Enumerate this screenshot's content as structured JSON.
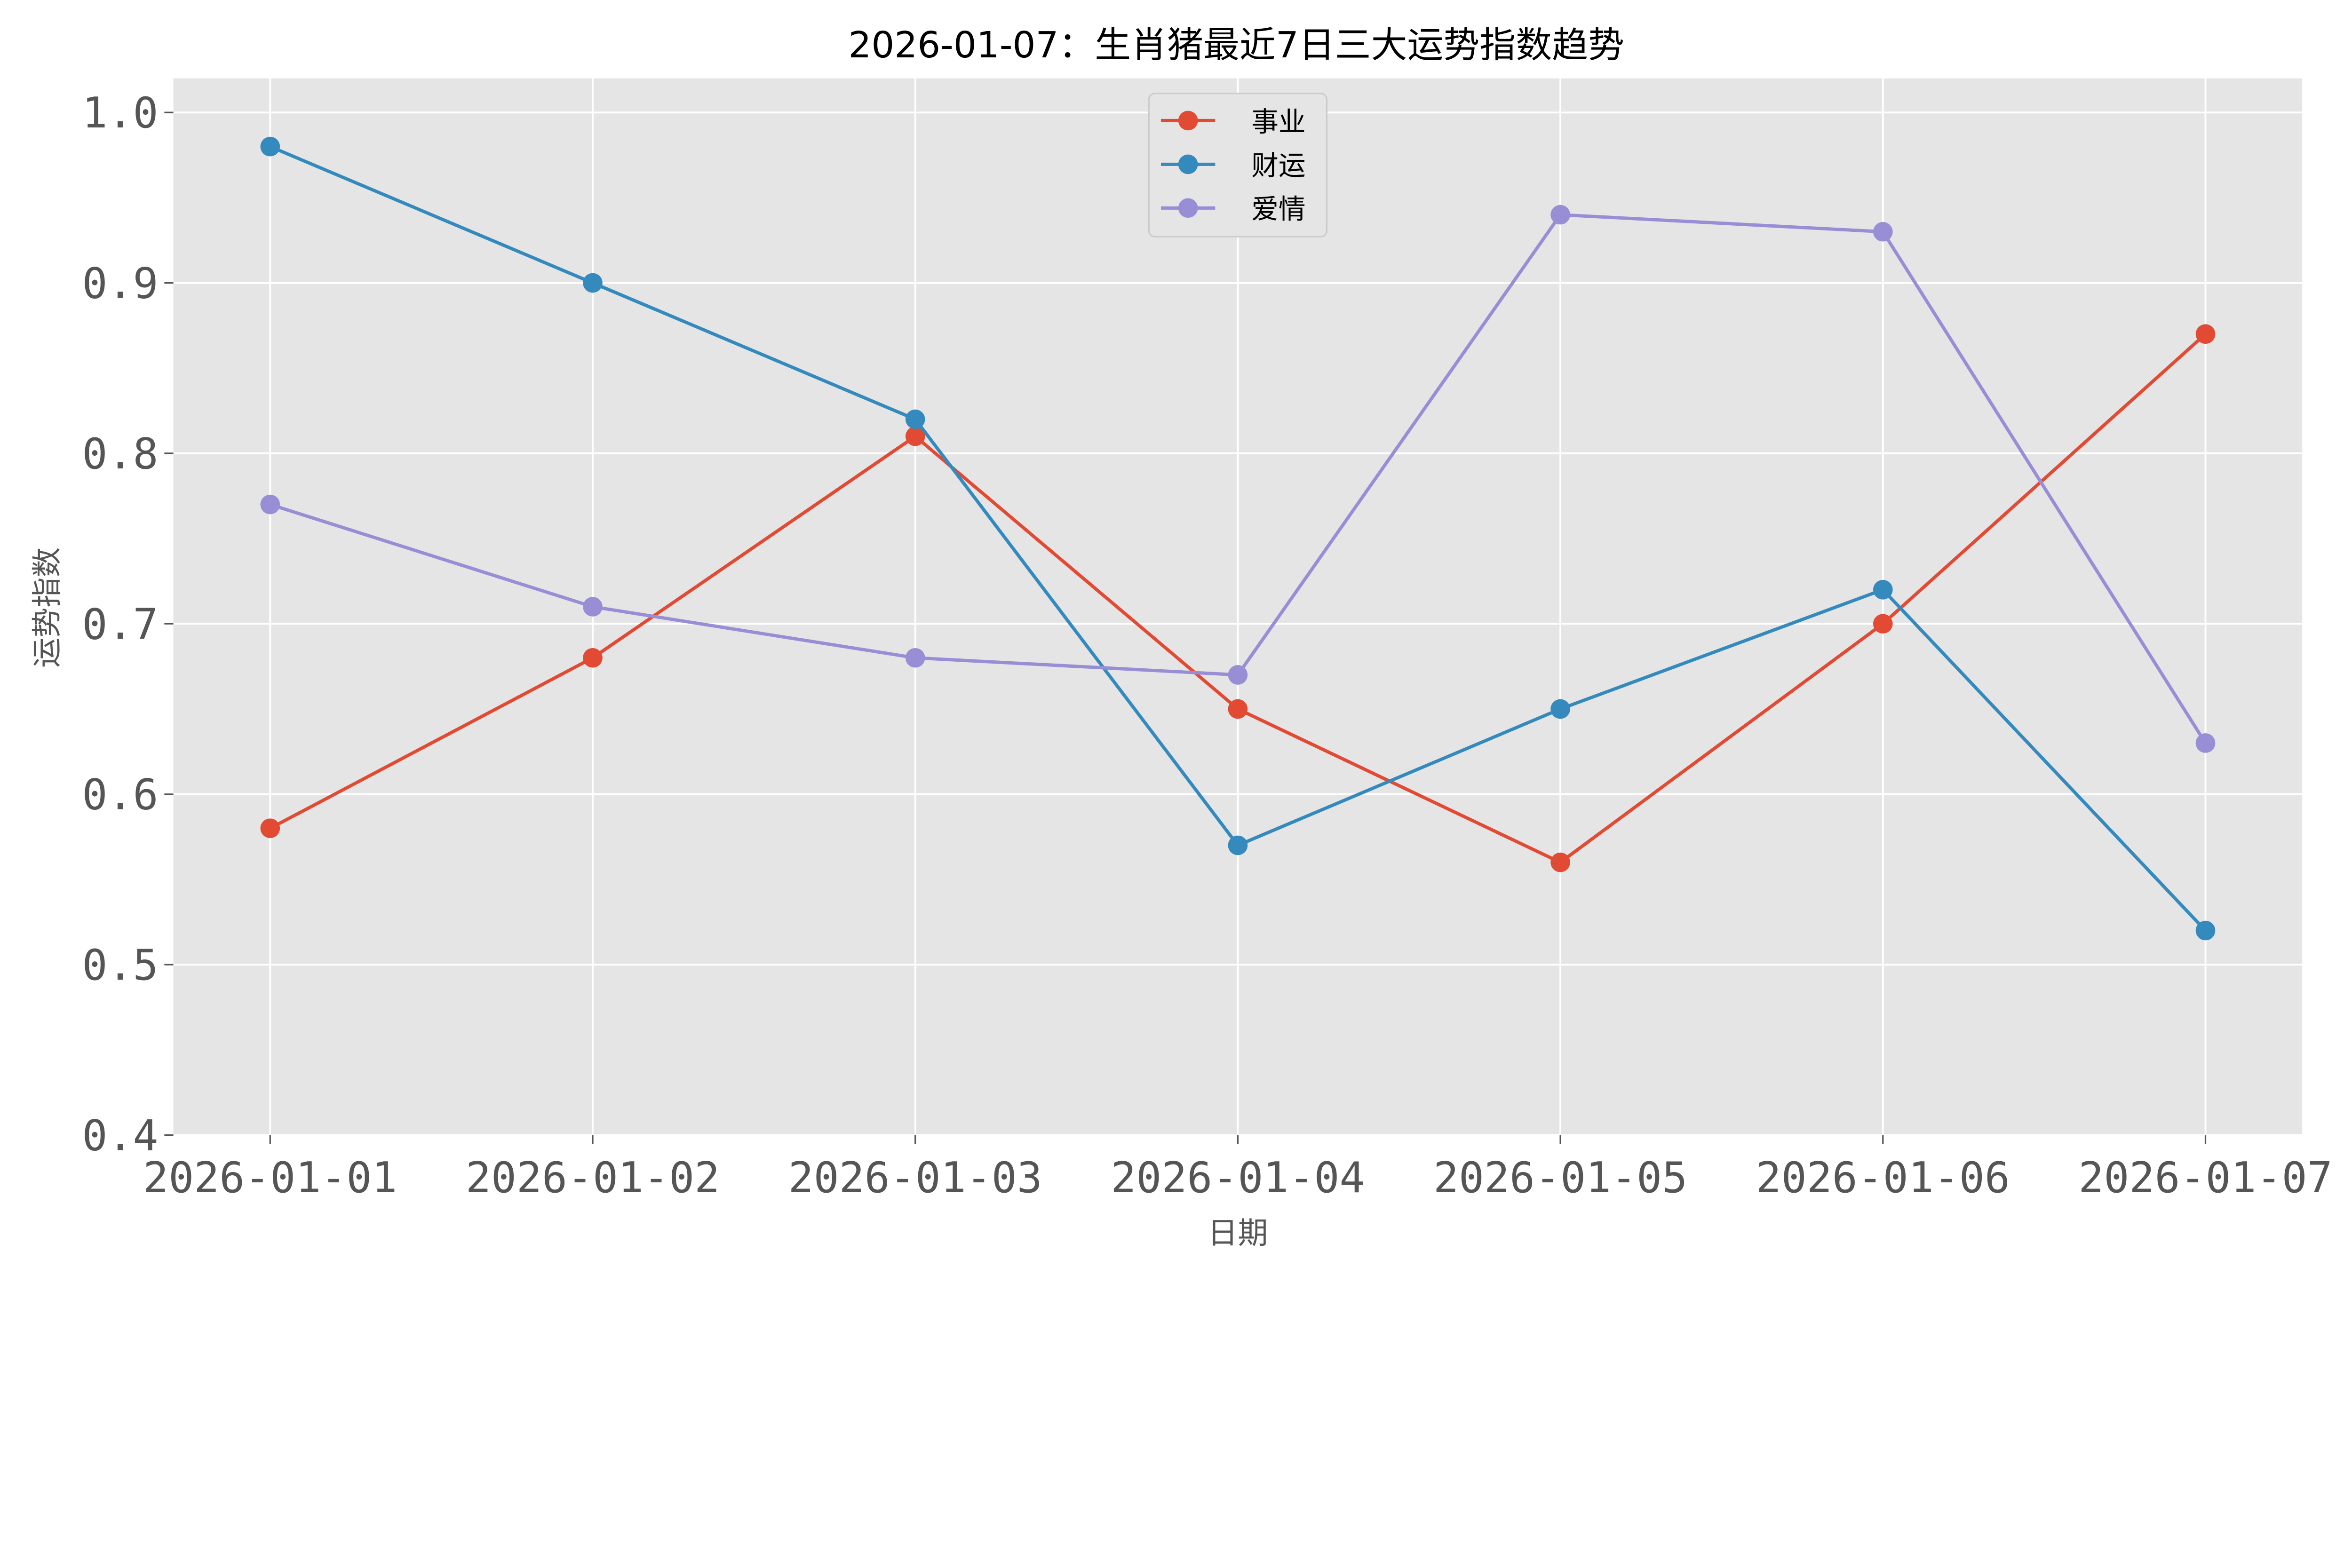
{
  "chart_data": {
    "type": "line",
    "title": "2026-01-07：生肖猪最近7日三大运势指数趋势",
    "xlabel": "日期",
    "ylabel": "运势指数",
    "categories": [
      "2026-01-01",
      "2026-01-02",
      "2026-01-03",
      "2026-01-04",
      "2026-01-05",
      "2026-01-06",
      "2026-01-07"
    ],
    "ylim": [
      0.4,
      1.02
    ],
    "yticks": [
      "0.4",
      "0.5",
      "0.6",
      "0.7",
      "0.8",
      "0.9",
      "1.0"
    ],
    "grid": true,
    "legend_position": "upper-center",
    "marker": "circle",
    "background": "#e5e5e5",
    "series": [
      {
        "name": "事业",
        "color": "#e24a33",
        "values": [
          0.58,
          0.68,
          0.81,
          0.65,
          0.56,
          0.7,
          0.87
        ]
      },
      {
        "name": "财运",
        "color": "#348abd",
        "values": [
          0.98,
          0.9,
          0.82,
          0.57,
          0.65,
          0.72,
          0.52
        ]
      },
      {
        "name": "爱情",
        "color": "#988ed5",
        "values": [
          0.77,
          0.71,
          0.68,
          0.67,
          0.94,
          0.93,
          0.63
        ]
      }
    ]
  }
}
